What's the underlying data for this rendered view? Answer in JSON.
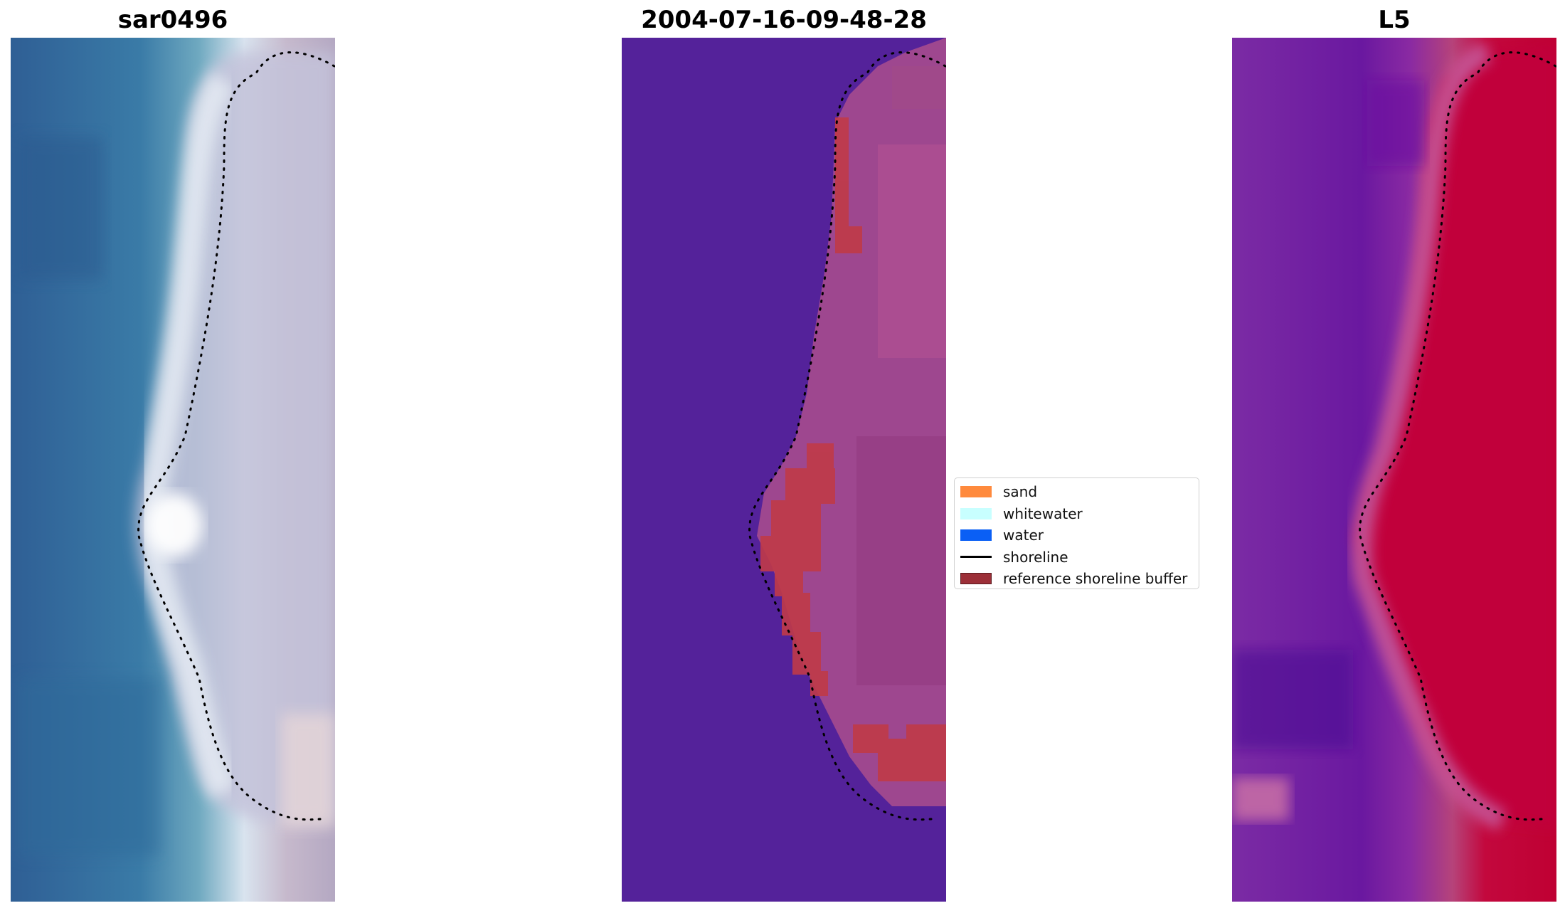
{
  "panels": [
    {
      "title": "sar0496"
    },
    {
      "title": "2004-07-16-09-48-28"
    },
    {
      "title": "L5"
    }
  ],
  "legend": {
    "items": [
      {
        "label": "sand",
        "color": "#ff8a3d",
        "kind": "patch"
      },
      {
        "label": "whitewater",
        "color": "#c8ffff",
        "kind": "patch"
      },
      {
        "label": "water",
        "color": "#0a5ff5",
        "kind": "patch"
      },
      {
        "label": "shoreline",
        "color": "#000000",
        "kind": "line"
      },
      {
        "label": "reference shoreline buffer",
        "color": "#9c2f38",
        "kind": "patch"
      }
    ]
  }
}
